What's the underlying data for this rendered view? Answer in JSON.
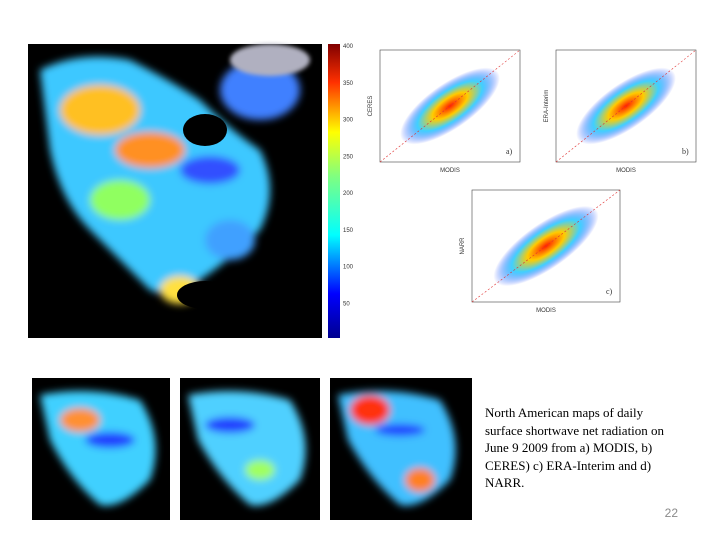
{
  "colorbar": {
    "ticks": [
      400,
      350,
      300,
      250,
      200,
      150,
      100,
      50
    ]
  },
  "scatter_plots": [
    {
      "label": "a)",
      "x_label": "MODIS",
      "y_label": "CERES"
    },
    {
      "label": "b)",
      "x_label": "MODIS",
      "y_label": "ERA-Interim"
    },
    {
      "label": "c)",
      "x_label": "MODIS",
      "y_label": "NARR"
    }
  ],
  "caption": "North American maps of daily surface shortwave net radiation on June 9 2009 from a) MODIS, b) CERES) c) ERA-Interim and d) NARR.",
  "slide_number": 22
}
